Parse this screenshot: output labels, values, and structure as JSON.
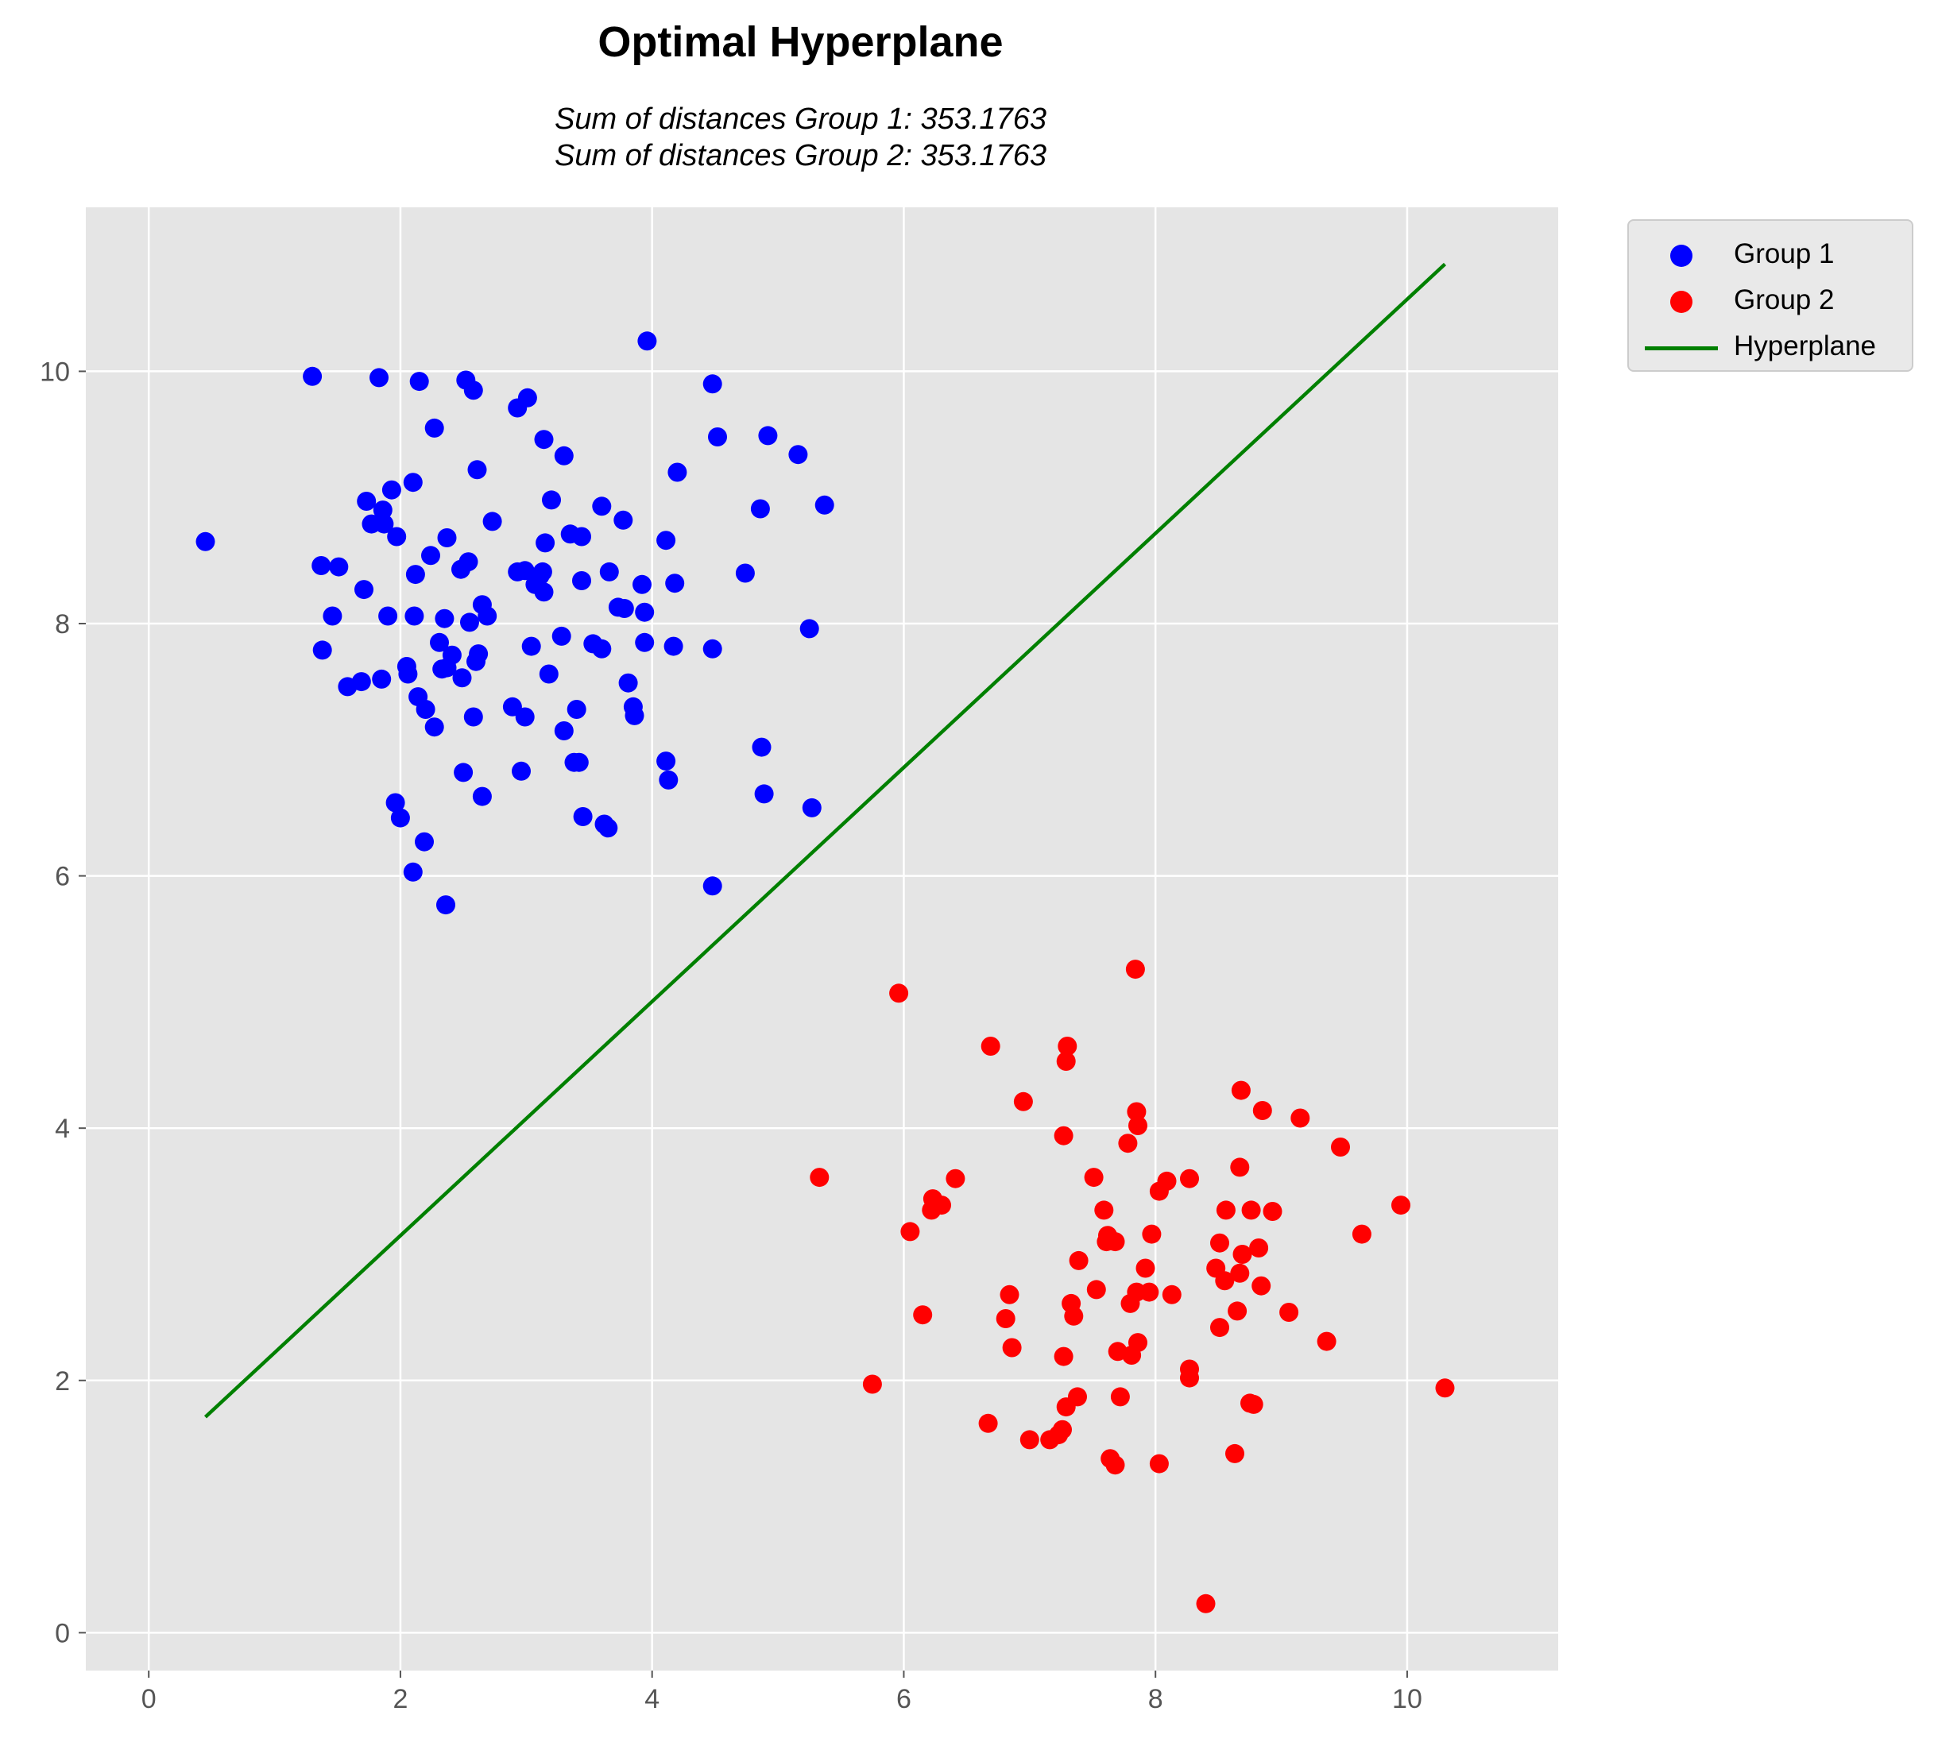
{
  "chart_data": {
    "type": "scatter",
    "title": "Optimal Hyperplane",
    "subtitle_lines": [
      "Sum of distances Group 1: 353.1763",
      "Sum of distances Group 2: 353.1763"
    ],
    "xlabel": "",
    "ylabel": "",
    "xlim": [
      -0.5,
      11.2
    ],
    "ylim": [
      -0.3,
      11.3
    ],
    "xticks": [
      "0",
      "2",
      "4",
      "6",
      "8",
      "10"
    ],
    "yticks": [
      "0",
      "2",
      "4",
      "6",
      "8",
      "10"
    ],
    "grid": true,
    "legend_position": "outside-top-right",
    "series": [
      {
        "name": "Group 1",
        "kind": "scatter",
        "color": "#0000ff",
        "points": [
          [
            0.45,
            8.65
          ],
          [
            1.3,
            9.96
          ],
          [
            1.83,
            9.95
          ],
          [
            2.15,
            9.92
          ],
          [
            2.52,
            9.93
          ],
          [
            2.58,
            9.85
          ],
          [
            3.01,
            9.79
          ],
          [
            2.93,
            9.71
          ],
          [
            4.48,
            9.9
          ],
          [
            3.96,
            10.24
          ],
          [
            2.27,
            9.55
          ],
          [
            3.14,
            9.46
          ],
          [
            3.3,
            9.33
          ],
          [
            2.61,
            9.22
          ],
          [
            4.52,
            9.48
          ],
          [
            4.92,
            9.49
          ],
          [
            5.16,
            9.34
          ],
          [
            4.2,
            9.2
          ],
          [
            2.1,
            9.12
          ],
          [
            1.93,
            9.06
          ],
          [
            1.73,
            8.97
          ],
          [
            1.86,
            8.9
          ],
          [
            1.77,
            8.79
          ],
          [
            1.87,
            8.79
          ],
          [
            1.97,
            8.69
          ],
          [
            2.37,
            8.68
          ],
          [
            2.73,
            8.81
          ],
          [
            3.2,
            8.98
          ],
          [
            3.6,
            8.93
          ],
          [
            3.77,
            8.82
          ],
          [
            4.86,
            8.91
          ],
          [
            5.37,
            8.94
          ],
          [
            3.35,
            8.71
          ],
          [
            3.44,
            8.69
          ],
          [
            3.15,
            8.64
          ],
          [
            4.11,
            8.66
          ],
          [
            1.37,
            8.46
          ],
          [
            1.51,
            8.45
          ],
          [
            2.24,
            8.54
          ],
          [
            2.54,
            8.49
          ],
          [
            2.48,
            8.43
          ],
          [
            2.12,
            8.39
          ],
          [
            1.71,
            8.27
          ],
          [
            2.93,
            8.41
          ],
          [
            2.99,
            8.42
          ],
          [
            3.11,
            8.38
          ],
          [
            3.13,
            8.41
          ],
          [
            3.44,
            8.34
          ],
          [
            3.66,
            8.41
          ],
          [
            3.07,
            8.31
          ],
          [
            3.14,
            8.25
          ],
          [
            3.92,
            8.31
          ],
          [
            4.18,
            8.32
          ],
          [
            4.74,
            8.4
          ],
          [
            1.46,
            8.06
          ],
          [
            1.9,
            8.06
          ],
          [
            2.11,
            8.06
          ],
          [
            2.35,
            8.04
          ],
          [
            2.55,
            8.01
          ],
          [
            2.65,
            8.15
          ],
          [
            2.69,
            8.06
          ],
          [
            3.73,
            8.13
          ],
          [
            3.78,
            8.12
          ],
          [
            3.94,
            8.09
          ],
          [
            1.38,
            7.79
          ],
          [
            2.31,
            7.85
          ],
          [
            2.41,
            7.75
          ],
          [
            2.6,
            7.7
          ],
          [
            2.62,
            7.76
          ],
          [
            3.04,
            7.82
          ],
          [
            3.28,
            7.9
          ],
          [
            3.53,
            7.84
          ],
          [
            3.6,
            7.8
          ],
          [
            3.94,
            7.85
          ],
          [
            4.17,
            7.82
          ],
          [
            4.48,
            7.8
          ],
          [
            5.25,
            7.96
          ],
          [
            1.58,
            7.5
          ],
          [
            1.69,
            7.54
          ],
          [
            1.85,
            7.56
          ],
          [
            2.05,
            7.66
          ],
          [
            2.06,
            7.6
          ],
          [
            2.33,
            7.64
          ],
          [
            2.37,
            7.65
          ],
          [
            2.49,
            7.57
          ],
          [
            3.18,
            7.6
          ],
          [
            3.81,
            7.53
          ],
          [
            2.14,
            7.42
          ],
          [
            2.2,
            7.32
          ],
          [
            2.58,
            7.26
          ],
          [
            2.27,
            7.18
          ],
          [
            2.89,
            7.34
          ],
          [
            2.99,
            7.26
          ],
          [
            3.3,
            7.15
          ],
          [
            3.4,
            7.32
          ],
          [
            3.85,
            7.34
          ],
          [
            3.86,
            7.27
          ],
          [
            4.11,
            6.91
          ],
          [
            4.87,
            7.02
          ],
          [
            2.5,
            6.82
          ],
          [
            2.96,
            6.83
          ],
          [
            3.38,
            6.9
          ],
          [
            3.42,
            6.9
          ],
          [
            4.13,
            6.76
          ],
          [
            2.65,
            6.63
          ],
          [
            4.89,
            6.65
          ],
          [
            5.27,
            6.54
          ],
          [
            1.96,
            6.58
          ],
          [
            2.0,
            6.46
          ],
          [
            3.45,
            6.47
          ],
          [
            3.62,
            6.41
          ],
          [
            3.65,
            6.38
          ],
          [
            2.19,
            6.27
          ],
          [
            2.1,
            6.03
          ],
          [
            4.48,
            5.92
          ],
          [
            2.36,
            5.77
          ]
        ]
      },
      {
        "name": "Group 2",
        "kind": "scatter",
        "color": "#ff0000",
        "points": [
          [
            7.84,
            5.26
          ],
          [
            5.96,
            5.07
          ],
          [
            6.69,
            4.65
          ],
          [
            7.3,
            4.65
          ],
          [
            7.29,
            4.53
          ],
          [
            6.95,
            4.21
          ],
          [
            7.85,
            4.13
          ],
          [
            7.86,
            4.02
          ],
          [
            7.27,
            3.94
          ],
          [
            7.78,
            3.88
          ],
          [
            8.68,
            4.3
          ],
          [
            8.85,
            4.14
          ],
          [
            9.15,
            4.08
          ],
          [
            9.47,
            3.85
          ],
          [
            5.33,
            3.61
          ],
          [
            6.41,
            3.6
          ],
          [
            7.51,
            3.61
          ],
          [
            8.09,
            3.58
          ],
          [
            8.27,
            3.6
          ],
          [
            8.67,
            3.69
          ],
          [
            8.03,
            3.5
          ],
          [
            6.23,
            3.44
          ],
          [
            6.3,
            3.39
          ],
          [
            6.22,
            3.35
          ],
          [
            6.05,
            3.18
          ],
          [
            7.59,
            3.35
          ],
          [
            7.61,
            3.1
          ],
          [
            7.62,
            3.15
          ],
          [
            7.68,
            3.1
          ],
          [
            7.97,
            3.16
          ],
          [
            8.56,
            3.35
          ],
          [
            8.76,
            3.35
          ],
          [
            8.93,
            3.34
          ],
          [
            9.95,
            3.39
          ],
          [
            9.64,
            3.16
          ],
          [
            8.51,
            3.09
          ],
          [
            8.69,
            3.0
          ],
          [
            8.82,
            3.05
          ],
          [
            7.39,
            2.95
          ],
          [
            7.92,
            2.89
          ],
          [
            8.48,
            2.89
          ],
          [
            8.55,
            2.79
          ],
          [
            8.67,
            2.85
          ],
          [
            8.84,
            2.75
          ],
          [
            7.33,
            2.61
          ],
          [
            7.35,
            2.51
          ],
          [
            7.53,
            2.72
          ],
          [
            7.8,
            2.61
          ],
          [
            7.85,
            2.7
          ],
          [
            7.95,
            2.7
          ],
          [
            8.13,
            2.68
          ],
          [
            6.84,
            2.68
          ],
          [
            6.81,
            2.49
          ],
          [
            6.15,
            2.52
          ],
          [
            6.86,
            2.26
          ],
          [
            7.27,
            2.19
          ],
          [
            7.7,
            2.23
          ],
          [
            7.81,
            2.2
          ],
          [
            7.86,
            2.3
          ],
          [
            8.51,
            2.42
          ],
          [
            8.65,
            2.55
          ],
          [
            9.06,
            2.54
          ],
          [
            9.36,
            2.31
          ],
          [
            8.27,
            2.09
          ],
          [
            8.27,
            2.02
          ],
          [
            5.75,
            1.97
          ],
          [
            7.29,
            1.79
          ],
          [
            7.38,
            1.87
          ],
          [
            7.72,
            1.87
          ],
          [
            8.75,
            1.82
          ],
          [
            8.78,
            1.81
          ],
          [
            10.3,
            1.94
          ],
          [
            6.67,
            1.66
          ],
          [
            7.0,
            1.53
          ],
          [
            7.16,
            1.53
          ],
          [
            7.23,
            1.57
          ],
          [
            7.26,
            1.61
          ],
          [
            7.64,
            1.38
          ],
          [
            7.68,
            1.33
          ],
          [
            8.03,
            1.34
          ],
          [
            8.63,
            1.42
          ],
          [
            8.4,
            0.23
          ]
        ]
      },
      {
        "name": "Hyperplane",
        "kind": "line",
        "color": "#008000",
        "points": [
          [
            0.45,
            1.71
          ],
          [
            10.3,
            10.85
          ]
        ]
      }
    ]
  }
}
